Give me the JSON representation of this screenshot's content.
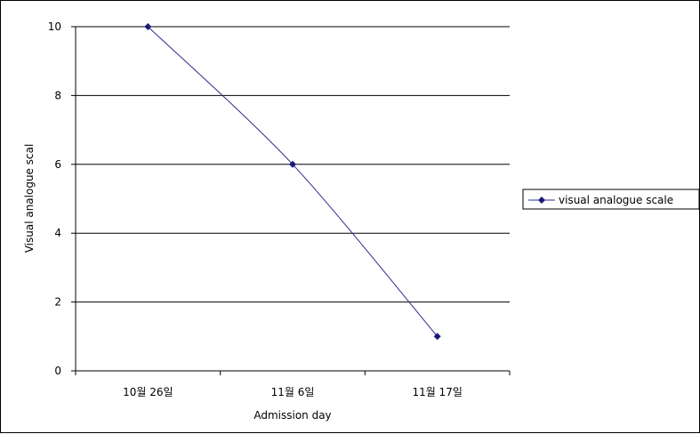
{
  "chart_data": {
    "type": "line",
    "categories": [
      "10월 26일",
      "11월 6일",
      "11월 17일"
    ],
    "series": [
      {
        "name": "visual analogue scale",
        "values": [
          10,
          6,
          1
        ],
        "color": "#2b2b8f"
      }
    ],
    "xlabel": "Admission day",
    "ylabel": "Visual analogue scal",
    "ylim": [
      0,
      10
    ],
    "yticks": [
      0,
      2,
      4,
      6,
      8,
      10
    ],
    "grid": true,
    "legend_position": "right",
    "marker": "diamond"
  }
}
